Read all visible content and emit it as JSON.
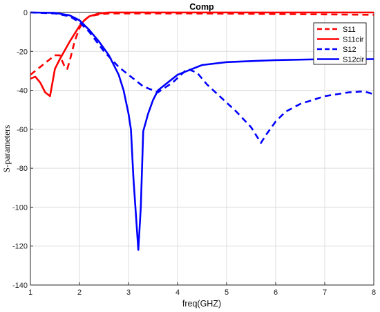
{
  "chart_data": {
    "type": "line",
    "title": "Comp",
    "xlabel": "freq(GHZ)",
    "ylabel": "S-parameters",
    "xlim": [
      1,
      8
    ],
    "ylim": [
      -140,
      0
    ],
    "xticks": [
      1,
      2,
      3,
      4,
      5,
      6,
      7,
      8
    ],
    "yticks": [
      0,
      -20,
      -40,
      -60,
      -80,
      -100,
      -120,
      -140
    ],
    "grid": true,
    "legend_position": "top-right",
    "series": [
      {
        "name": "S11",
        "color": "#ff0000",
        "dash": "dashed",
        "x": [
          1.0,
          1.2,
          1.4,
          1.5,
          1.6,
          1.7,
          1.75,
          1.8,
          1.9,
          2.0,
          2.1,
          2.2,
          2.4,
          2.6,
          3.0,
          4.0,
          5.0,
          6.0,
          7.0,
          8.0
        ],
        "y": [
          -32,
          -28,
          -24,
          -22,
          -22,
          -28,
          -29,
          -25,
          -15,
          -8,
          -4,
          -2,
          -1,
          -0.5,
          -0.5,
          -0.5,
          -0.6,
          -0.8,
          -1,
          -1.2
        ]
      },
      {
        "name": "S11cir",
        "color": "#ff0000",
        "dash": "solid",
        "x": [
          1.0,
          1.1,
          1.2,
          1.3,
          1.4,
          1.5,
          1.6,
          1.8,
          2.0,
          2.1,
          2.2,
          2.4,
          2.6,
          3.0,
          4.0,
          5.0,
          6.0,
          7.0,
          8.0
        ],
        "y": [
          -34,
          -33,
          -36,
          -41,
          -43,
          -29,
          -24,
          -15,
          -7,
          -4,
          -2,
          -0.5,
          0,
          0,
          0,
          0,
          0,
          0,
          0
        ]
      },
      {
        "name": "S12",
        "color": "#0000ff",
        "dash": "dashed",
        "x": [
          1.0,
          1.5,
          1.8,
          2.0,
          2.2,
          2.5,
          2.8,
          3.0,
          3.3,
          3.6,
          3.9,
          4.2,
          4.4,
          4.6,
          4.9,
          5.2,
          5.5,
          5.7,
          5.8,
          6.0,
          6.2,
          6.5,
          7.0,
          7.5,
          7.8,
          8.0
        ],
        "y": [
          0,
          -0.5,
          -2,
          -5,
          -10,
          -20,
          -28,
          -32,
          -38,
          -41,
          -36,
          -29,
          -31,
          -37,
          -44,
          -51,
          -59,
          -67,
          -63,
          -56,
          -51,
          -47,
          -43,
          -41,
          -40.5,
          -42
        ]
      },
      {
        "name": "S12cir",
        "color": "#0000ff",
        "dash": "solid",
        "x": [
          1.0,
          1.5,
          1.8,
          2.0,
          2.2,
          2.4,
          2.6,
          2.8,
          2.9,
          3.0,
          3.05,
          3.1,
          3.2,
          3.25,
          3.3,
          3.4,
          3.5,
          3.6,
          3.8,
          4.0,
          4.2,
          4.5,
          5.0,
          6.0,
          7.0,
          8.0
        ],
        "y": [
          0,
          -0.2,
          -1.5,
          -4,
          -9,
          -15,
          -22,
          -32,
          -40,
          -52,
          -60,
          -85,
          -122,
          -100,
          -61,
          -52,
          -45,
          -40,
          -36,
          -32,
          -30,
          -27,
          -25.5,
          -24.5,
          -24,
          -24
        ]
      }
    ]
  }
}
